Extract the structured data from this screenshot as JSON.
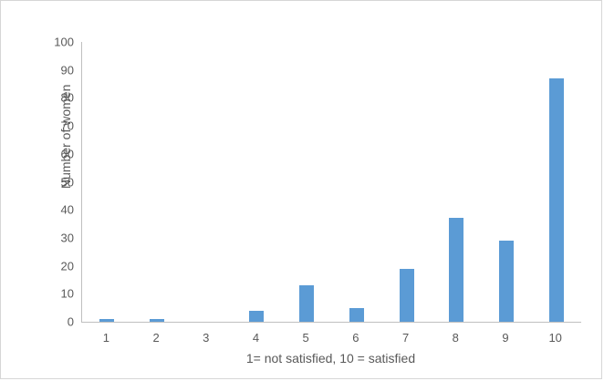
{
  "chart_data": {
    "type": "bar",
    "title": "",
    "categories": [
      "1",
      "2",
      "3",
      "4",
      "5",
      "6",
      "7",
      "8",
      "9",
      "10"
    ],
    "values": [
      1,
      1,
      0,
      4,
      13,
      5,
      19,
      37,
      29,
      87
    ],
    "xlabel": "1= not satisfied, 10 = satisfied",
    "ylabel": "Number of women",
    "ylim": [
      0,
      100
    ],
    "yticks": [
      0,
      10,
      20,
      30,
      40,
      50,
      60,
      70,
      80,
      90,
      100
    ],
    "bar_color": "#5b9bd5",
    "axis_color": "#bfbfbf",
    "text_color": "#595959",
    "grid": false,
    "legend_position": "none"
  }
}
